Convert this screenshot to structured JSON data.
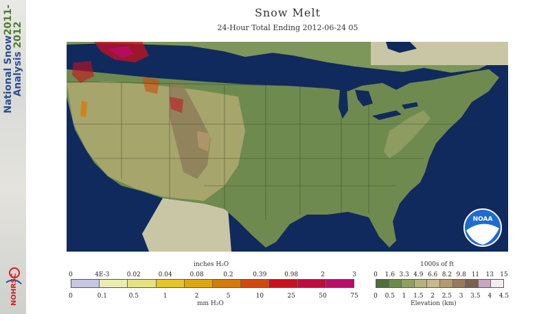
{
  "sidebar": {
    "line1": "National Snow",
    "line1_year": "2011-",
    "line2": "Analysis",
    "line2_year": "2012",
    "logo_text": "NOHRSC"
  },
  "header": {
    "title": "Snow Melt",
    "subtitle": "24-Hour Total Ending 2012-06-24 05"
  },
  "map": {
    "ocean_color": "#102a5e",
    "land_color": "#6f8a4e",
    "noaa_logo_text": "NOAA"
  },
  "legend_melt": {
    "top_unit": "inches H₂O",
    "top_ticks": [
      "0",
      "4E-3",
      "0.02",
      "0.04",
      "0.08",
      "0.2",
      "0.39",
      "0.98",
      "2",
      "3"
    ],
    "bottom_ticks": [
      "0",
      "0.1",
      "0.5",
      "1",
      "2",
      "5",
      "10",
      "25",
      "50",
      "75"
    ],
    "bottom_unit": "mm H₂O",
    "colors": [
      "#c7c7e2",
      "#ecebb1",
      "#e6e37e",
      "#e6c52a",
      "#dfa614",
      "#d87a0b",
      "#d04a08",
      "#c8111c",
      "#bf0b3e",
      "#b80c6a"
    ]
  },
  "legend_elev": {
    "top_unit": "1000s of ft",
    "top_ticks": [
      "0",
      "1.6",
      "3.3",
      "4.9",
      "6.6",
      "8.2",
      "9.8",
      "11",
      "13",
      "15"
    ],
    "bottom_ticks": [
      "0",
      "0.5",
      "1",
      "1.5",
      "2",
      "2.5",
      "3",
      "3.5",
      "4",
      "4.5"
    ],
    "bottom_unit": "Elevation (km)",
    "colors": [
      "#4f6e3a",
      "#6d8a48",
      "#8fa060",
      "#b8b27a",
      "#c8b88c",
      "#b49a6e",
      "#9a7a58",
      "#7c6150",
      "#c4a8c4",
      "#f2ecf2"
    ]
  }
}
